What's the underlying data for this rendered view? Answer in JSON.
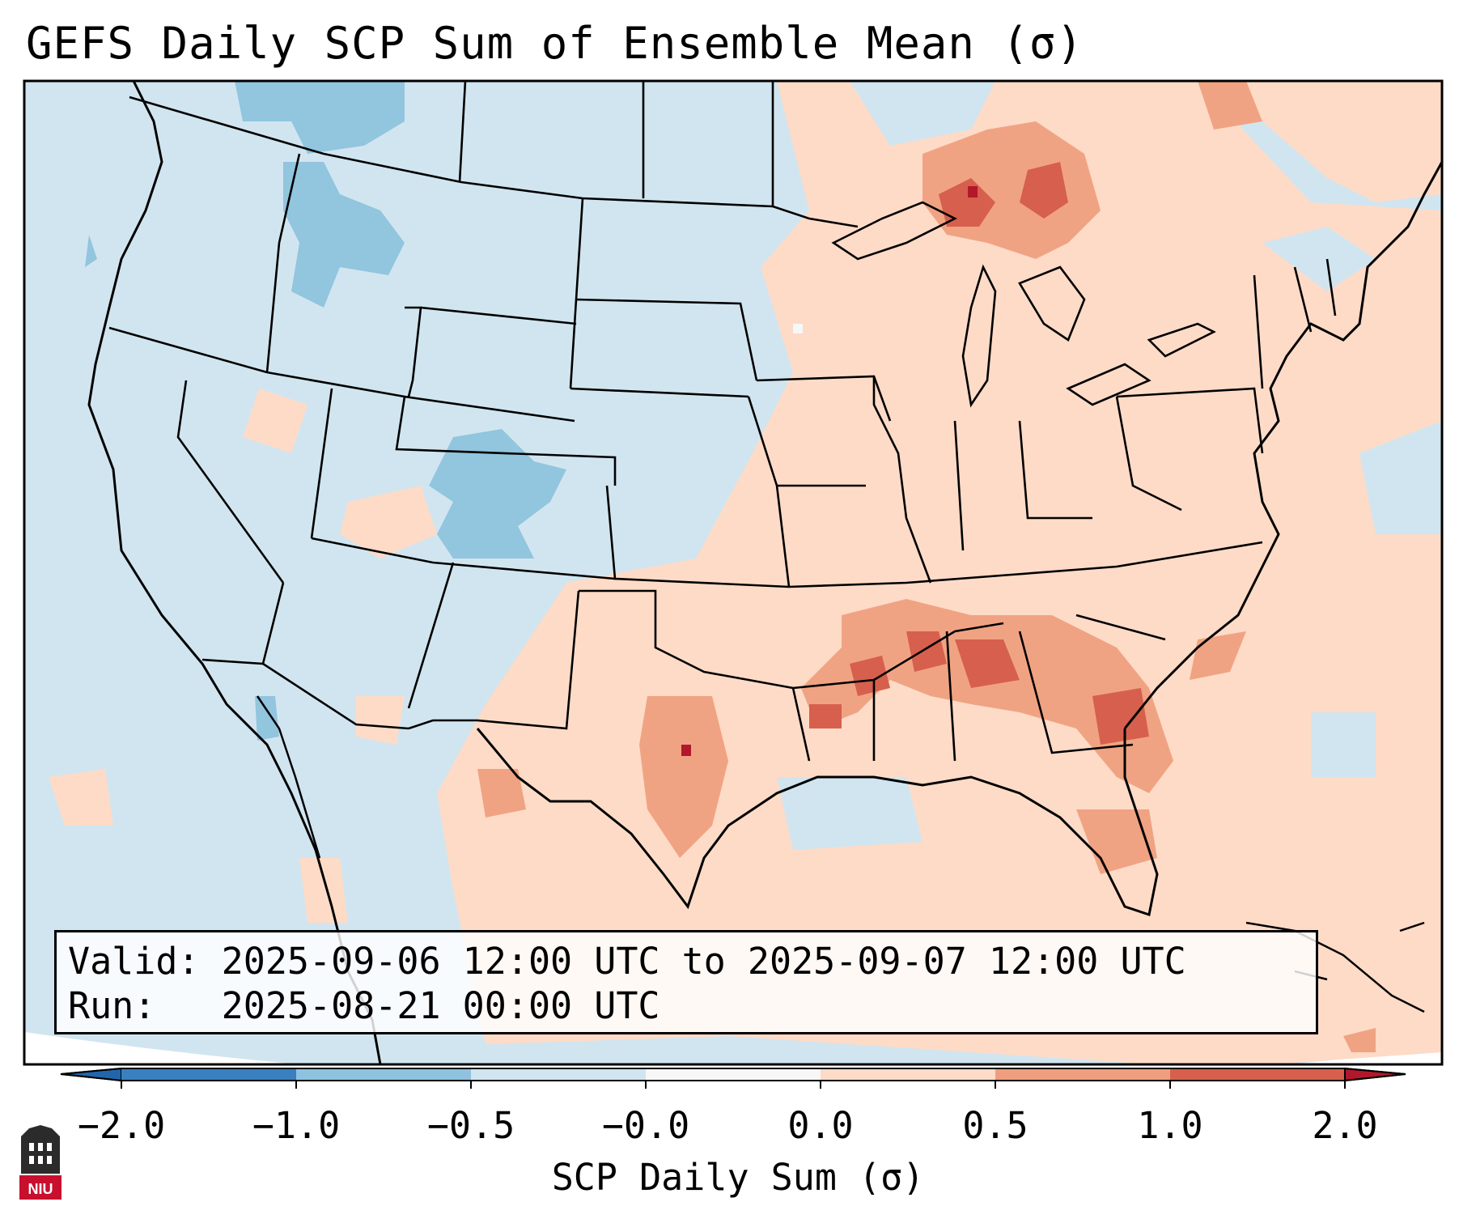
{
  "title": "GEFS Daily SCP Sum of Ensemble Mean (σ)",
  "valid_label": "Valid:",
  "valid_value": "2025-09-06 12:00 UTC to 2025-09-07 12:00 UTC",
  "run_label": "Run:",
  "run_value": "2025-08-21 00:00 UTC",
  "colorbar": {
    "label": "SCP Daily Sum (σ)",
    "ticks": [
      "−2.0",
      "−1.0",
      "−0.5",
      "−0.0",
      "0.0",
      "0.5",
      "1.0",
      "2.0"
    ],
    "colors": [
      "#3a7fbf",
      "#8fc2de",
      "#d1e5f0",
      "#f7f7f7",
      "#fddbc7",
      "#ee9e7f",
      "#d6604d",
      "#b2182b"
    ],
    "under_color": "#2166ac",
    "over_color": "#b2182b"
  },
  "colors": {
    "neg_light": "#d1e5f0",
    "neg_mid": "#92c5de",
    "pos_light": "#fddbc7",
    "pos_mid": "#f0a383",
    "pos_strong": "#d6604d",
    "pos_extreme": "#b2182b"
  },
  "logo": {
    "text": "NIU",
    "name": "niu-logo"
  }
}
